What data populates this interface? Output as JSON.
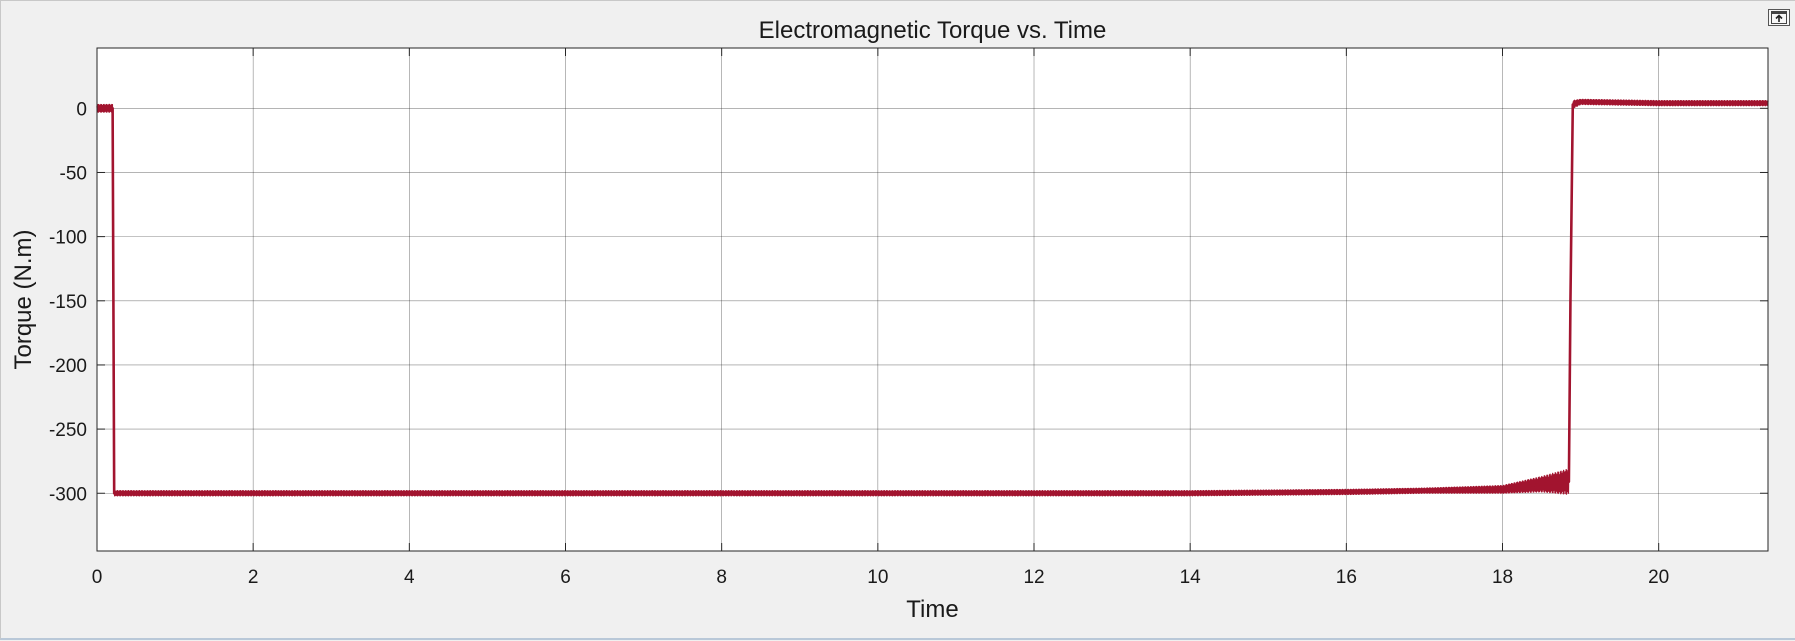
{
  "window": {
    "undock_icon": "undock-icon"
  },
  "chart_data": {
    "type": "line",
    "title": "Electromagnetic Torque vs. Time",
    "xlabel": "Time",
    "ylabel": "Torque (N.m)",
    "xlim": [
      0,
      21.4
    ],
    "ylim": [
      -345,
      47
    ],
    "xticks": [
      0,
      2,
      4,
      6,
      8,
      10,
      12,
      14,
      16,
      18,
      20
    ],
    "yticks": [
      0,
      -50,
      -100,
      -150,
      -200,
      -250,
      -300
    ],
    "grid": true,
    "legend": "none",
    "colors": {
      "series": "#a2142f",
      "background": "#ffffff",
      "grid": "#262626",
      "figure": "#f0f0f0"
    },
    "series": [
      {
        "x": [
          0,
          0.2,
          0.21,
          0.22,
          2,
          4,
          6,
          8,
          10,
          12,
          14,
          16,
          17,
          18,
          18.5,
          18.85,
          18.87,
          18.9,
          19,
          20,
          21.4
        ],
        "y": [
          0,
          0,
          -150,
          -300,
          -300,
          -300,
          -300,
          -300,
          -300,
          -300,
          -300,
          -299,
          -298,
          -297,
          -293,
          -291,
          -150,
          3,
          5,
          4,
          4
        ],
        "noise": [
          3,
          3,
          0,
          2,
          2,
          2,
          2,
          2,
          2,
          2,
          2,
          2,
          2,
          3,
          6,
          10,
          0,
          3,
          2,
          2,
          2
        ]
      }
    ]
  }
}
